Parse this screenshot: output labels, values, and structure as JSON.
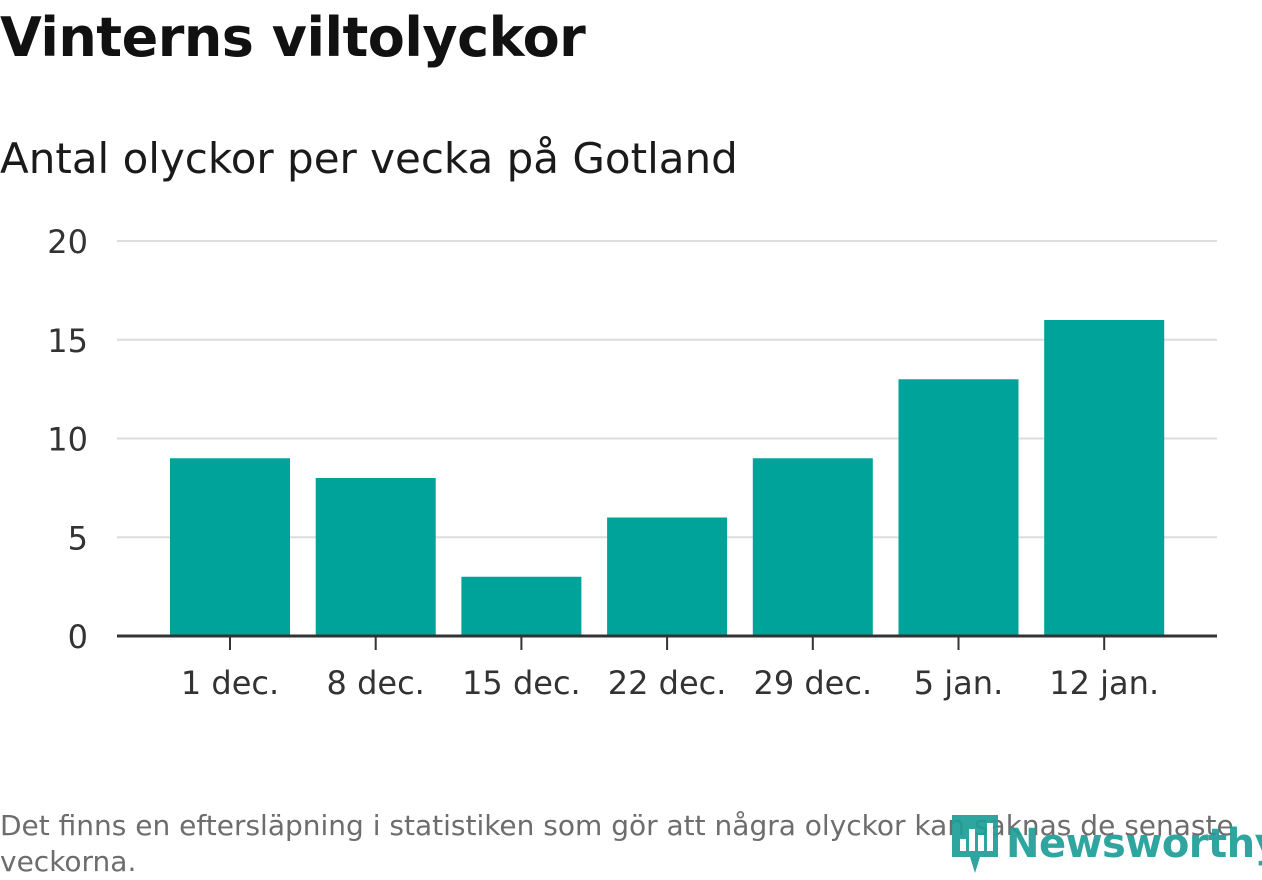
{
  "chart_data": {
    "type": "bar",
    "title": "Vinterns viltolyckor",
    "subtitle": "Antal olyckor per vecka på Gotland",
    "categories": [
      "1 dec.",
      "8 dec.",
      "15 dec.",
      "22 dec.",
      "29 dec.",
      "5 jan.",
      "12 jan."
    ],
    "values": [
      9,
      8,
      3,
      6,
      9,
      13,
      16
    ],
    "xlabel": "",
    "ylabel": "",
    "ylim": [
      0,
      20
    ],
    "yticks": [
      "0",
      "5",
      "10",
      "15",
      "20"
    ],
    "grid": true,
    "legend": "none",
    "note": "Det finns en eftersläpning i statistiken som gör att några olyckor kan saknas de senaste veckorna."
  },
  "colors": {
    "bar": "#00a399",
    "gridline": "#dddddd",
    "axis": "#333333",
    "brand": "#1e9e98"
  },
  "brand": {
    "name": "Newsworthy",
    "icon": "newsworthy-logo-icon"
  }
}
